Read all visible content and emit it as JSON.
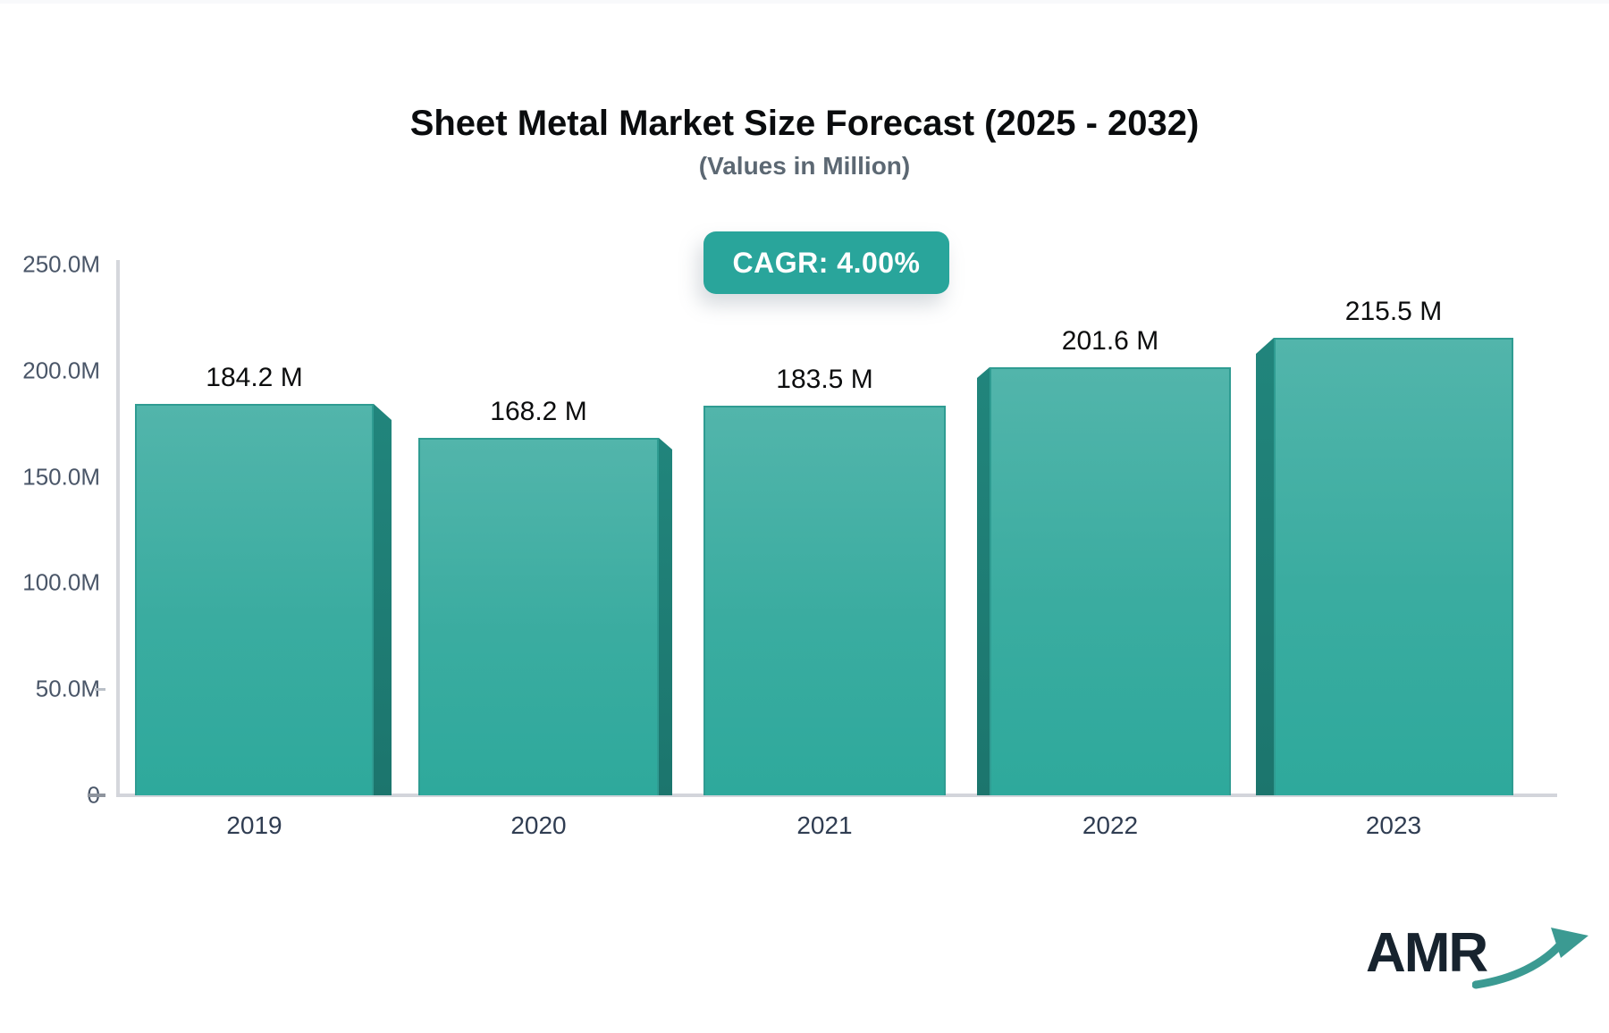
{
  "header": {
    "title": "Sheet Metal Market Size Forecast (2025 - 2032)",
    "subtitle": "(Values in Million)",
    "badge_label": "CAGR: 4.00%"
  },
  "chart_data": {
    "type": "bar",
    "title": "Sheet Metal Market Size Forecast (2025 - 2032)",
    "subtitle": "(Values in Million)",
    "annotation": "CAGR: 4.00%",
    "categories": [
      "2019",
      "2020",
      "2021",
      "2022",
      "2023"
    ],
    "values": [
      184.2,
      168.2,
      183.5,
      201.6,
      215.5
    ],
    "value_labels": [
      "184.2 M",
      "168.2 M",
      "183.5 M",
      "201.6 M",
      "215.5 M"
    ],
    "unit": "Million",
    "xlabel": "",
    "ylabel": "",
    "ylim": [
      0,
      250
    ],
    "ytick_labels": [
      "250.0M",
      "200.0M",
      "150.0M",
      "100.0M",
      "50.0M",
      "0"
    ],
    "ytick_values": [
      250,
      200,
      150,
      100,
      50,
      0
    ],
    "grid": false,
    "legend": false,
    "bar_style": "3d-extruded",
    "side_faces": [
      "right",
      "right",
      "none",
      "left",
      "left"
    ],
    "colors": {
      "bar_top": "#52b5ab",
      "bar_bottom": "#2ea99c",
      "bar_border": "#2f9c92",
      "bar_side": "#1e7b73",
      "axis": "#d5d7dc",
      "badge_background": "#29a59b",
      "badge_text": "#ffffff",
      "title_text": "#0a0c0e",
      "subtitle_text": "#5c6873",
      "tick_text": "#4a5668",
      "category_text": "#303d52",
      "value_text": "#0c0d0e",
      "logo_text": "#17232e",
      "logo_arrow": "#3b9a92"
    }
  },
  "footer": {
    "logo_text": "AMR"
  }
}
